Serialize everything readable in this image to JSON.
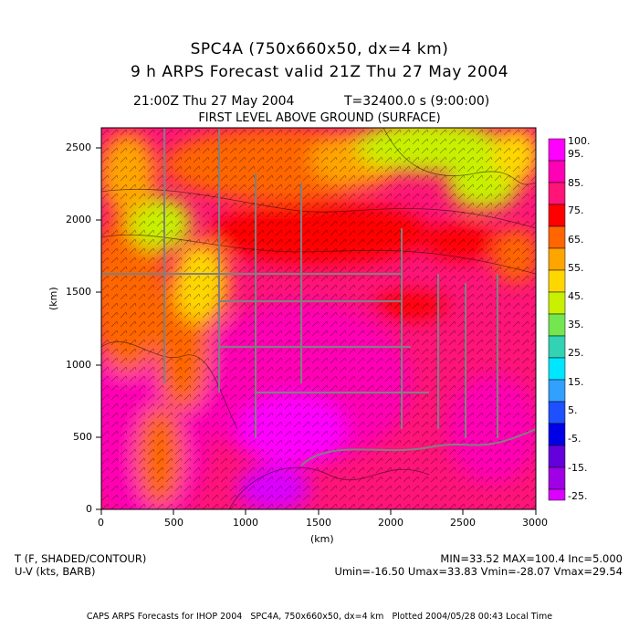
{
  "header": {
    "model_title": "SPC4A (750x660x50, dx=4 km)",
    "forecast_title": "9 h ARPS Forecast valid 21Z Thu 27 May 2004",
    "valid_time": "21:00Z Thu 27 May 2004",
    "time_seconds": "T=32400.0 s (9:00:00)",
    "level": "FIRST LEVEL ABOVE GROUND (SURFACE)"
  },
  "axes": {
    "x_label": "(km)",
    "y_label": "(km)",
    "x_ticks": [
      "0",
      "500",
      "1000",
      "1500",
      "2000",
      "2500",
      "3000"
    ],
    "y_ticks": [
      "0",
      "500",
      "1000",
      "1500",
      "2000",
      "2500"
    ]
  },
  "colorbar": {
    "labels": [
      "100.",
      "95.",
      "85.",
      "75.",
      "65.",
      "55.",
      "45.",
      "35.",
      "25.",
      "15.",
      "5.",
      "-5.",
      "-15.",
      "-25."
    ],
    "colors": [
      "#ff00ff",
      "#ff00b4",
      "#ff1478",
      "#ff0000",
      "#ff6600",
      "#ffa500",
      "#ffd700",
      "#c8f000",
      "#73e650",
      "#32d2b4",
      "#00e6ff",
      "#32a0ff",
      "#1e50ff",
      "#0000e6",
      "#6400dc",
      "#a000e6",
      "#dc00ff"
    ]
  },
  "footer": {
    "field1": "T (F, SHADED/CONTOUR)",
    "field2": "U-V (kts, BARB)",
    "stats1": "MIN=33.52 MAX=100.4 Inc=5.000",
    "stats2": "Umin=-16.50 Umax=33.83 Vmin=-28.07 Vmax=29.54",
    "credit": "CAPS ARPS Forecasts for IHOP 2004   SPC4A, 750x660x50, dx=4 km   Plotted 2004/05/28 00:43 Local Time"
  }
}
